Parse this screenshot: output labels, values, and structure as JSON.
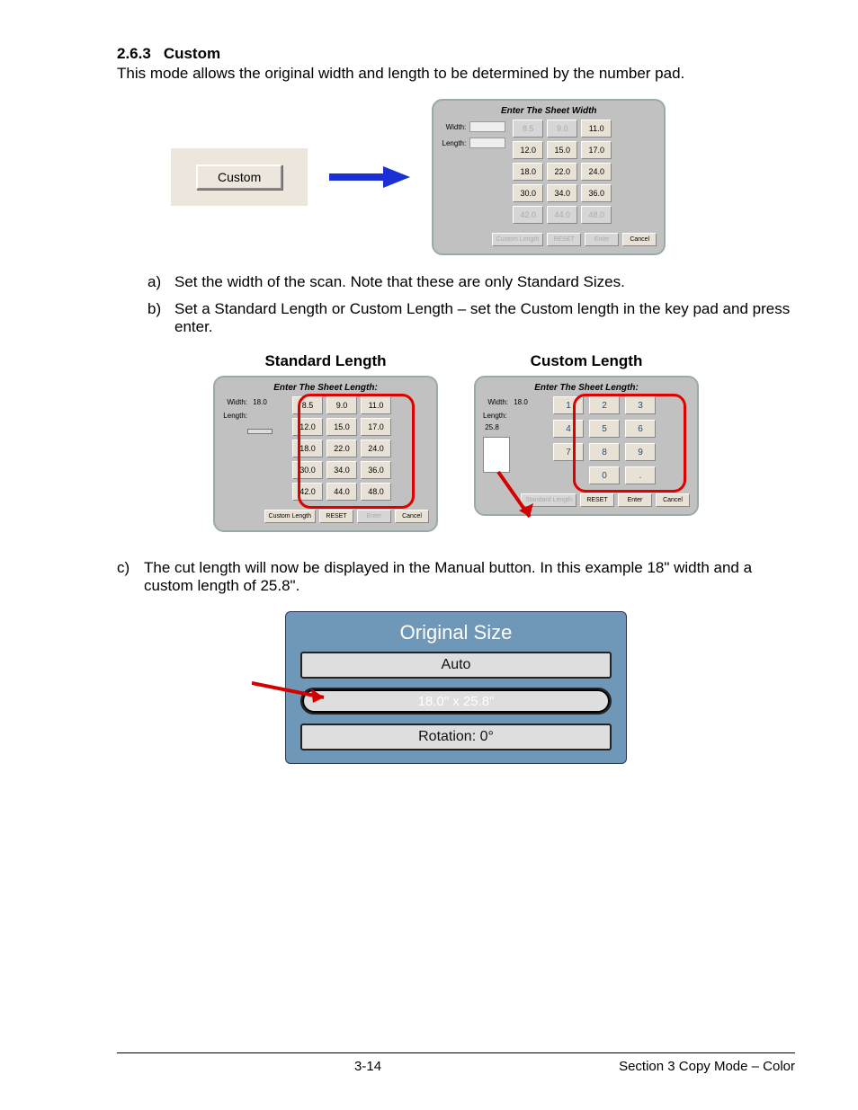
{
  "heading": {
    "number": "2.6.3",
    "title": "Custom"
  },
  "intro": "This mode allows the original width and length to be determined by the number pad.",
  "custom_button_label": "Custom",
  "width_dialog": {
    "title": "Enter The Sheet Width",
    "width_label": "Width:",
    "length_label": "Length:",
    "grid": [
      {
        "v": "8.5",
        "d": true
      },
      {
        "v": "9.0",
        "d": true
      },
      {
        "v": "11.0",
        "d": false
      },
      {
        "v": "12.0",
        "d": false
      },
      {
        "v": "15.0",
        "d": false
      },
      {
        "v": "17.0",
        "d": false
      },
      {
        "v": "18.0",
        "d": false
      },
      {
        "v": "22.0",
        "d": false
      },
      {
        "v": "24.0",
        "d": false
      },
      {
        "v": "30.0",
        "d": false
      },
      {
        "v": "34.0",
        "d": false
      },
      {
        "v": "36.0",
        "d": false
      },
      {
        "v": "42.0",
        "d": true
      },
      {
        "v": "44.0",
        "d": true
      },
      {
        "v": "48.0",
        "d": true
      }
    ],
    "footer": {
      "custom_length": "Custom Length",
      "reset": "RESET",
      "enter": "Enter",
      "cancel": "Cancel"
    }
  },
  "steps": {
    "a": "Set the width of the scan. Note that these are only Standard Sizes.",
    "b": "Set a Standard Length or Custom Length – set the Custom length in the key pad and press enter.",
    "c": "The cut length will now be displayed in the Manual button. In this example 18\" width and a custom length of 25.8\"."
  },
  "standard_length": {
    "heading": "Standard Length",
    "title": "Enter The Sheet Length:",
    "width_label": "Width:",
    "width_value": "18.0",
    "length_label": "Length:",
    "grid": [
      {
        "v": "8.5"
      },
      {
        "v": "9.0"
      },
      {
        "v": "11.0"
      },
      {
        "v": "12.0"
      },
      {
        "v": "15.0"
      },
      {
        "v": "17.0"
      },
      {
        "v": "18.0"
      },
      {
        "v": "22.0"
      },
      {
        "v": "24.0"
      },
      {
        "v": "30.0"
      },
      {
        "v": "34.0"
      },
      {
        "v": "36.0"
      },
      {
        "v": "42.0"
      },
      {
        "v": "44.0"
      },
      {
        "v": "48.0"
      }
    ],
    "footer": {
      "custom_length": "Custom Length",
      "reset": "RESET",
      "enter": "Enter",
      "cancel": "Cancel"
    },
    "highlight_color": "#e00000"
  },
  "custom_length": {
    "heading": "Custom Length",
    "title": "Enter The Sheet Length:",
    "width_label": "Width:",
    "width_value": "18.0",
    "length_label": "Length:",
    "length_value": "25.8",
    "keypad": [
      "1",
      "2",
      "3",
      "4",
      "5",
      "6",
      "7",
      "8",
      "9",
      "",
      "0",
      "."
    ],
    "footer": {
      "standard_length": "Standard Length",
      "reset": "RESET",
      "enter": "Enter",
      "cancel": "Cancel"
    },
    "highlight_color": "#e00000"
  },
  "original_size_panel": {
    "title": "Original Size",
    "auto": "Auto",
    "value": "18.0\" x 25.8\"",
    "rotation": "Rotation: 0°",
    "panel_color": "#6f98b8",
    "arrow_color": "#d40000"
  },
  "footer": {
    "page": "3-14",
    "section": "Section 3    Copy Mode – Color"
  }
}
